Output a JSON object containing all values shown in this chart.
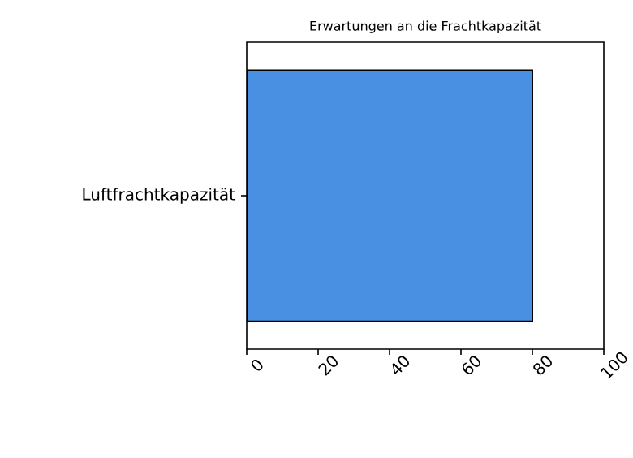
{
  "chart_data": {
    "type": "bar",
    "orientation": "horizontal",
    "title": "Erwartungen an die Frachtkapazität",
    "categories": [
      "Luftfrachtkapazität"
    ],
    "values": [
      80
    ],
    "color": "#4a90e2",
    "xlim": [
      0,
      100
    ],
    "xticks": [
      0,
      20,
      40,
      60,
      80,
      100
    ]
  }
}
